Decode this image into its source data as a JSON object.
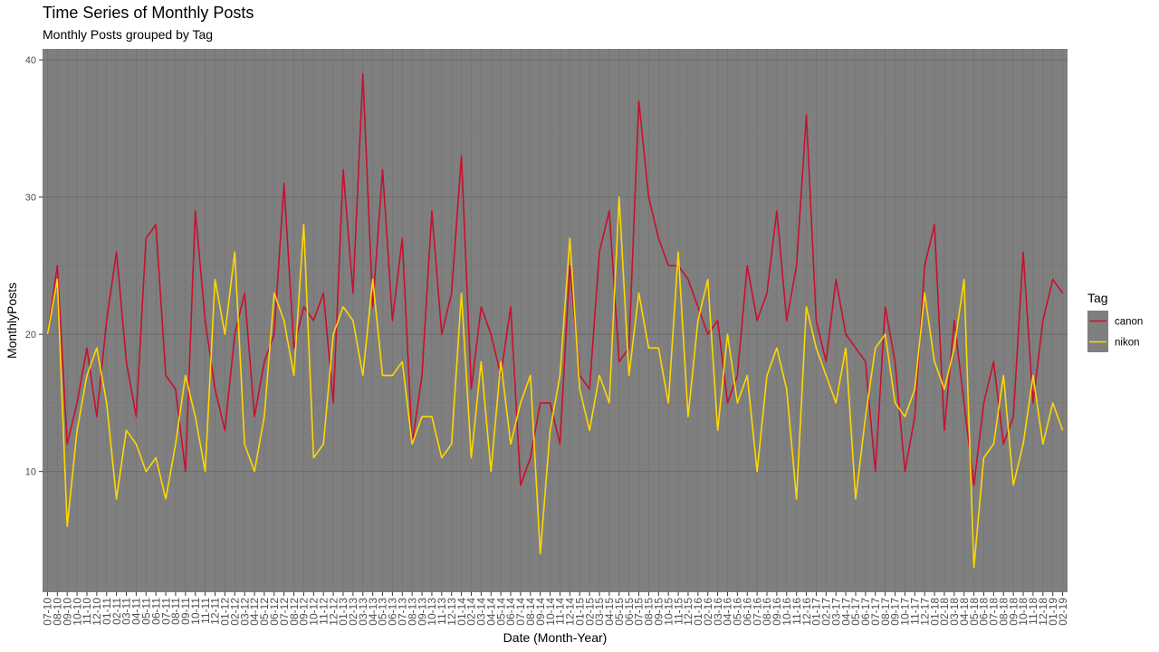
{
  "chart_data": {
    "type": "line",
    "title": "Time Series of Monthly Posts",
    "subtitle": "Monthly Posts grouped by Tag",
    "xlabel": "Date (Month-Year)",
    "ylabel": "MonthlyPosts",
    "yticks": [
      10,
      20,
      30,
      40
    ],
    "ylim": [
      1.2,
      40.8
    ],
    "grid": true,
    "panel_color": "#7f7f7f",
    "legend": {
      "title": "Tag",
      "position": "right"
    },
    "x": [
      "07-10",
      "08-10",
      "09-10",
      "10-10",
      "11-10",
      "12-10",
      "01-11",
      "02-11",
      "03-11",
      "04-11",
      "05-11",
      "06-11",
      "07-11",
      "08-11",
      "09-11",
      "10-11",
      "11-11",
      "12-11",
      "01-12",
      "02-12",
      "03-12",
      "04-12",
      "05-12",
      "06-12",
      "07-12",
      "08-12",
      "09-12",
      "10-12",
      "11-12",
      "12-12",
      "01-13",
      "02-13",
      "03-13",
      "04-13",
      "05-13",
      "06-13",
      "07-13",
      "08-13",
      "09-13",
      "10-13",
      "11-13",
      "12-13",
      "01-14",
      "02-14",
      "03-14",
      "04-14",
      "05-14",
      "06-14",
      "07-14",
      "08-14",
      "09-14",
      "10-14",
      "11-14",
      "12-14",
      "01-15",
      "02-15",
      "03-15",
      "04-15",
      "05-15",
      "06-15",
      "07-15",
      "08-15",
      "09-15",
      "10-15",
      "11-15",
      "12-15",
      "01-16",
      "02-16",
      "03-16",
      "04-16",
      "05-16",
      "06-16",
      "07-16",
      "08-16",
      "09-16",
      "10-16",
      "11-16",
      "12-16",
      "01-17",
      "02-17",
      "03-17",
      "04-17",
      "05-17",
      "06-17",
      "07-17",
      "08-17",
      "09-17",
      "10-17",
      "11-17",
      "12-17",
      "01-18",
      "02-18",
      "03-18",
      "04-18",
      "05-18",
      "06-18",
      "07-18",
      "08-18",
      "09-18",
      "10-18",
      "11-18",
      "12-18",
      "01-19",
      "02-19"
    ],
    "series": [
      {
        "name": "canon",
        "color": "#c8102e",
        "values": [
          20,
          25,
          12,
          15,
          19,
          14,
          21,
          26,
          18,
          14,
          27,
          28,
          17,
          16,
          10,
          29,
          21,
          16,
          13,
          20,
          23,
          14,
          18,
          20,
          31,
          19,
          22,
          21,
          23,
          15,
          32,
          23,
          39,
          22,
          32,
          21,
          27,
          12,
          17,
          29,
          20,
          23,
          33,
          16,
          22,
          20,
          17,
          22,
          9,
          11,
          15,
          15,
          12,
          25,
          17,
          16,
          26,
          29,
          18,
          19,
          37,
          30,
          27,
          25,
          25,
          24,
          22,
          20,
          21,
          15,
          17,
          25,
          21,
          23,
          29,
          21,
          25,
          36,
          21,
          18,
          24,
          20,
          19,
          18,
          10,
          22,
          18,
          10,
          14,
          25,
          28,
          13,
          21,
          15,
          9,
          15,
          18,
          12,
          14,
          26,
          15,
          21,
          24,
          23
        ]
      },
      {
        "name": "nikon",
        "color": "#ffd700",
        "values": [
          20,
          24,
          6,
          13,
          17,
          19,
          15,
          8,
          13,
          12,
          10,
          11,
          8,
          12,
          17,
          14,
          10,
          24,
          20,
          26,
          12,
          10,
          14,
          23,
          21,
          17,
          28,
          11,
          12,
          20,
          22,
          21,
          17,
          24,
          17,
          17,
          18,
          12,
          14,
          14,
          11,
          12,
          23,
          11,
          18,
          10,
          18,
          12,
          15,
          17,
          4,
          13,
          17,
          27,
          16,
          13,
          17,
          15,
          30,
          17,
          23,
          19,
          19,
          15,
          26,
          14,
          21,
          24,
          13,
          20,
          15,
          17,
          10,
          17,
          19,
          16,
          8,
          22,
          19,
          17,
          15,
          19,
          8,
          14,
          19,
          20,
          15,
          14,
          16,
          23,
          18,
          16,
          19,
          24,
          3,
          11,
          12,
          17,
          9,
          12,
          17,
          12,
          15,
          13
        ]
      }
    ]
  }
}
